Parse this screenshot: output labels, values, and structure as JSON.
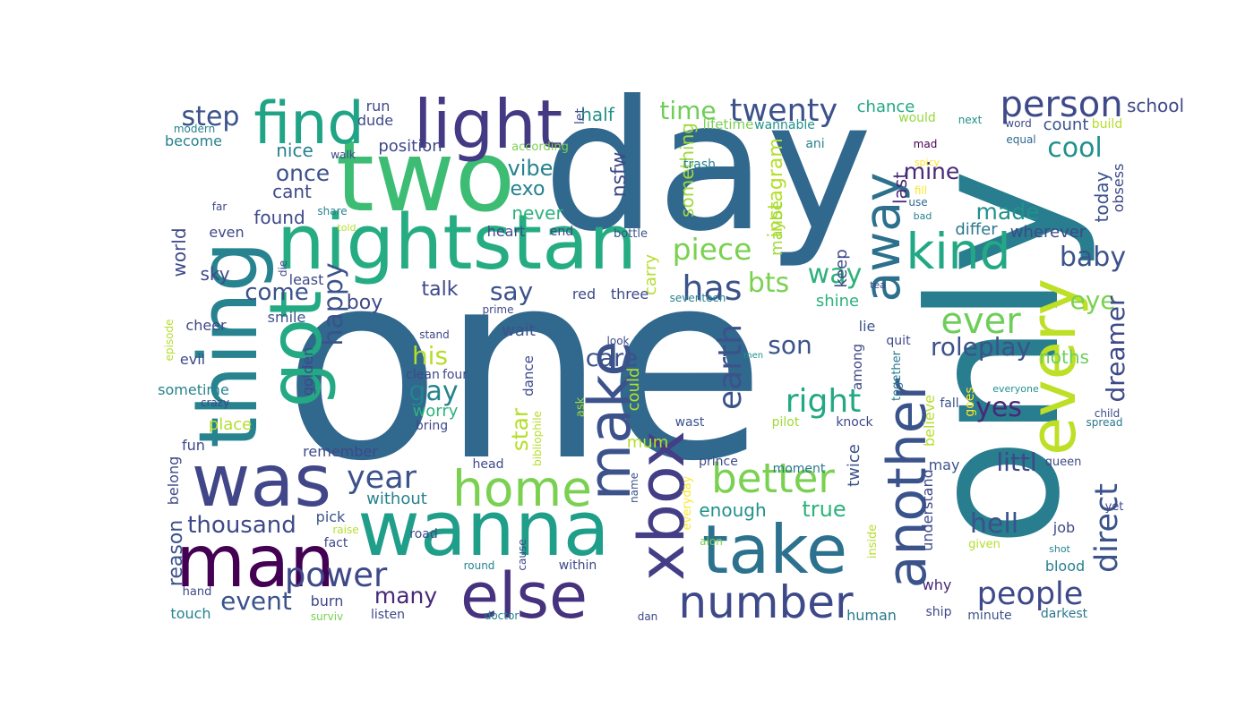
{
  "words": [
    {
      "t": "one",
      "c": "#31688e"
    },
    {
      "t": "day",
      "c": "#31688e"
    },
    {
      "t": "only",
      "c": "#287d8e"
    },
    {
      "t": "two",
      "c": "#3dbc74"
    },
    {
      "t": "nightstan",
      "c": "#25ac82"
    },
    {
      "t": "thing",
      "c": "#26838f"
    },
    {
      "t": "got",
      "c": "#23a983"
    },
    {
      "t": "find",
      "c": "#20a486"
    },
    {
      "t": "light",
      "c": "#443a83"
    },
    {
      "t": "was",
      "c": "#404688"
    },
    {
      "t": "man",
      "c": "#440154"
    },
    {
      "t": "wanna",
      "c": "#1f9e89"
    },
    {
      "t": "else",
      "c": "#46327e"
    },
    {
      "t": "take",
      "c": "#2c728e"
    },
    {
      "t": "xbox",
      "c": "#433e85"
    },
    {
      "t": "make",
      "c": "#3b528b"
    },
    {
      "t": "home",
      "c": "#7ad151"
    },
    {
      "t": "number",
      "c": "#3e4989"
    },
    {
      "t": "another",
      "c": "#3a538b"
    },
    {
      "t": "every",
      "c": "#bddf26"
    },
    {
      "t": "away",
      "c": "#2d708e"
    },
    {
      "t": "kind",
      "c": "#22a884"
    },
    {
      "t": "person",
      "c": "#3e4989"
    },
    {
      "t": "twenty",
      "c": "#3b528b"
    },
    {
      "t": "time",
      "c": "#6ece58"
    },
    {
      "t": "step",
      "c": "#3b528b"
    },
    {
      "t": "cool",
      "c": "#21918c"
    },
    {
      "t": "school",
      "c": "#3e4989"
    },
    {
      "t": "chance",
      "c": "#22a884"
    },
    {
      "t": "count",
      "c": "#3b528b"
    },
    {
      "t": "build",
      "c": "#b5de2b"
    },
    {
      "t": "word",
      "c": "#3e4989"
    },
    {
      "t": "next",
      "c": "#21918c"
    },
    {
      "t": "would",
      "c": "#95d840"
    },
    {
      "t": "mad",
      "c": "#440154"
    },
    {
      "t": "spicy",
      "c": "#fde725"
    },
    {
      "t": "fill",
      "c": "#fde725"
    },
    {
      "t": "use",
      "c": "#31688e"
    },
    {
      "t": "bad",
      "c": "#26828e"
    },
    {
      "t": "equal",
      "c": "#31688e"
    },
    {
      "t": "today",
      "c": "#3b528b"
    },
    {
      "t": "obsess",
      "c": "#3e4989"
    },
    {
      "t": "last",
      "c": "#482878"
    },
    {
      "t": "mine",
      "c": "#482878"
    },
    {
      "t": "made",
      "c": "#21918c"
    },
    {
      "t": "differ",
      "c": "#2a788e"
    },
    {
      "t": "wherever",
      "c": "#3e4989"
    },
    {
      "t": "baby",
      "c": "#3b528b"
    },
    {
      "t": "eye",
      "c": "#7ad151"
    },
    {
      "t": "dreamer",
      "c": "#3e4989"
    },
    {
      "t": "direct",
      "c": "#3b528b"
    },
    {
      "t": "ever",
      "c": "#6ece58"
    },
    {
      "t": "roleplay",
      "c": "#3b528b"
    },
    {
      "t": "right",
      "c": "#22a884"
    },
    {
      "t": "yes",
      "c": "#482878"
    },
    {
      "t": "noths",
      "c": "#6ece58"
    },
    {
      "t": "littl",
      "c": "#3e4989"
    },
    {
      "t": "hell",
      "c": "#3b528b"
    },
    {
      "t": "people",
      "c": "#3e4989"
    },
    {
      "t": "earth",
      "c": "#3b528b"
    },
    {
      "t": "better",
      "c": "#7ad151"
    },
    {
      "t": "has",
      "c": "#3b528b"
    },
    {
      "t": "bts",
      "c": "#7ad151"
    },
    {
      "t": "way",
      "c": "#2db27d"
    },
    {
      "t": "piece",
      "c": "#7ad151"
    },
    {
      "t": "instagram",
      "c": "#b5de2b"
    },
    {
      "t": "maybe",
      "c": "#a0da39"
    },
    {
      "t": "keep",
      "c": "#3e4989"
    },
    {
      "t": "something",
      "c": "#a0da39"
    },
    {
      "t": "lifetime",
      "c": "#7ad151"
    },
    {
      "t": "wannable",
      "c": "#21918c"
    },
    {
      "t": "ani",
      "c": "#26828e"
    },
    {
      "t": "trash",
      "c": "#26828e"
    },
    {
      "t": "nsfw",
      "c": "#3e4989"
    },
    {
      "t": "half",
      "c": "#21918c"
    },
    {
      "t": "let",
      "c": "#3e4989"
    },
    {
      "t": "according",
      "c": "#7ad151"
    },
    {
      "t": "bottle",
      "c": "#3b528b"
    },
    {
      "t": "carry",
      "c": "#b5de2b"
    },
    {
      "t": "seventeen",
      "c": "#26828e"
    },
    {
      "t": "shine",
      "c": "#2db27d"
    },
    {
      "t": "son",
      "c": "#3b528b"
    },
    {
      "t": "among",
      "c": "#3e4989"
    },
    {
      "t": "lie",
      "c": "#3b528b"
    },
    {
      "t": "quit",
      "c": "#3e4989"
    },
    {
      "t": "believe",
      "c": "#b5de2b"
    },
    {
      "t": "together",
      "c": "#2a788e"
    },
    {
      "t": "everyone",
      "c": "#21918c"
    },
    {
      "t": "child",
      "c": "#3e4989"
    },
    {
      "t": "spread",
      "c": "#2a788e"
    },
    {
      "t": "fall",
      "c": "#3b528b"
    },
    {
      "t": "goes",
      "c": "#fde725"
    },
    {
      "t": "queen",
      "c": "#3e4989"
    },
    {
      "t": "tea",
      "c": "#3e4989"
    },
    {
      "t": "men",
      "c": "#21918c"
    },
    {
      "t": "pilot",
      "c": "#a0da39"
    },
    {
      "t": "knock",
      "c": "#3e4989"
    },
    {
      "t": "wast",
      "c": "#3b528b"
    },
    {
      "t": "prince",
      "c": "#3e4989"
    },
    {
      "t": "moment",
      "c": "#2a788e"
    },
    {
      "t": "twice",
      "c": "#3b528b"
    },
    {
      "t": "understand",
      "c": "#3e4989"
    },
    {
      "t": "may",
      "c": "#3b528b"
    },
    {
      "t": "enough",
      "c": "#21918c"
    },
    {
      "t": "true",
      "c": "#2db27d"
    },
    {
      "t": "everyday",
      "c": "#fde725"
    },
    {
      "t": "alon",
      "c": "#7ad151"
    },
    {
      "t": "inside",
      "c": "#b5de2b"
    },
    {
      "t": "job",
      "c": "#3e4989"
    },
    {
      "t": "yet",
      "c": "#3e4989"
    },
    {
      "t": "given",
      "c": "#b5de2b"
    },
    {
      "t": "shot",
      "c": "#26828e"
    },
    {
      "t": "blood",
      "c": "#26828e"
    },
    {
      "t": "why",
      "c": "#482878"
    },
    {
      "t": "human",
      "c": "#2a788e"
    },
    {
      "t": "ship",
      "c": "#3e4989"
    },
    {
      "t": "minute",
      "c": "#3b528b"
    },
    {
      "t": "darkest",
      "c": "#2a788e"
    },
    {
      "t": "dan",
      "c": "#3e4989"
    },
    {
      "t": "name",
      "c": "#3b528b"
    },
    {
      "t": "within",
      "c": "#3e4989"
    },
    {
      "t": "cause",
      "c": "#3e4989"
    },
    {
      "t": "doctor",
      "c": "#26828e"
    },
    {
      "t": "round",
      "c": "#26828e"
    },
    {
      "t": "raise",
      "c": "#b5de2b"
    },
    {
      "t": "fact",
      "c": "#3e4989"
    },
    {
      "t": "pick",
      "c": "#3b528b"
    },
    {
      "t": "thousand",
      "c": "#3e4989"
    },
    {
      "t": "year",
      "c": "#3b528b"
    },
    {
      "t": "without",
      "c": "#26828e"
    },
    {
      "t": "remember",
      "c": "#3e4989"
    },
    {
      "t": "event",
      "c": "#3b528b"
    },
    {
      "t": "burn",
      "c": "#3e4989"
    },
    {
      "t": "listen",
      "c": "#3e4989"
    },
    {
      "t": "surviv",
      "c": "#7ad151"
    },
    {
      "t": "touch",
      "c": "#26828e"
    },
    {
      "t": "hand",
      "c": "#3e4989"
    },
    {
      "t": "reason",
      "c": "#3b528b"
    },
    {
      "t": "belong",
      "c": "#3e4989"
    },
    {
      "t": "power",
      "c": "#3e4989"
    },
    {
      "t": "many",
      "c": "#482878"
    },
    {
      "t": "road",
      "c": "#3e4989"
    },
    {
      "t": "head",
      "c": "#3e4989"
    },
    {
      "t": "bibliophile",
      "c": "#b5de2b"
    },
    {
      "t": "ask",
      "c": "#a0da39"
    },
    {
      "t": "could",
      "c": "#b5de2b"
    },
    {
      "t": "mum",
      "c": "#b5de2b"
    },
    {
      "t": "star",
      "c": "#b5de2b"
    },
    {
      "t": "dance",
      "c": "#3e4989"
    },
    {
      "t": "care",
      "c": "#3b528b"
    },
    {
      "t": "look",
      "c": "#3e4989"
    },
    {
      "t": "wait",
      "c": "#3b528b"
    },
    {
      "t": "prime",
      "c": "#3e4989"
    },
    {
      "t": "clean",
      "c": "#3e4989"
    },
    {
      "t": "four",
      "c": "#3e4989"
    },
    {
      "t": "stand",
      "c": "#3e4989"
    },
    {
      "t": "bring",
      "c": "#3e4989"
    },
    {
      "t": "worry",
      "c": "#2db27d"
    },
    {
      "t": "gay",
      "c": "#26828e"
    },
    {
      "t": "his",
      "c": "#b5de2b"
    },
    {
      "t": "golden",
      "c": "#3e4989"
    },
    {
      "t": "sometime",
      "c": "#26828e"
    },
    {
      "t": "crazy",
      "c": "#3e4989"
    },
    {
      "t": "fun",
      "c": "#3e4989"
    },
    {
      "t": "place",
      "c": "#b5de2b"
    },
    {
      "t": "evil",
      "c": "#3e4989"
    },
    {
      "t": "cheer",
      "c": "#3e4989"
    },
    {
      "t": "smile",
      "c": "#3b528b"
    },
    {
      "t": "happy",
      "c": "#3b528b"
    },
    {
      "t": "least",
      "c": "#3e4989"
    },
    {
      "t": "die",
      "c": "#3e4989"
    },
    {
      "t": "sky",
      "c": "#3e4989"
    },
    {
      "t": "world",
      "c": "#3e4989"
    },
    {
      "t": "episode",
      "c": "#b5de2b"
    },
    {
      "t": "come",
      "c": "#3b528b"
    },
    {
      "t": "boy",
      "c": "#3e4989"
    },
    {
      "t": "talk",
      "c": "#3e4989"
    },
    {
      "t": "say",
      "c": "#3b528b"
    },
    {
      "t": "red",
      "c": "#3e4989"
    },
    {
      "t": "three",
      "c": "#3e4989"
    },
    {
      "t": "heart",
      "c": "#3e4989"
    },
    {
      "t": "end",
      "c": "#3e4989"
    },
    {
      "t": "never",
      "c": "#2db27d"
    },
    {
      "t": "exo",
      "c": "#26828e"
    },
    {
      "t": "vibe",
      "c": "#26828e"
    },
    {
      "t": "found",
      "c": "#3e4989"
    },
    {
      "t": "cant",
      "c": "#3e4989"
    },
    {
      "t": "once",
      "c": "#3b528b"
    },
    {
      "t": "nice",
      "c": "#26828e"
    },
    {
      "t": "walk",
      "c": "#3e4989"
    },
    {
      "t": "far",
      "c": "#3e4989"
    },
    {
      "t": "even",
      "c": "#3e4989"
    },
    {
      "t": "share",
      "c": "#26828e"
    },
    {
      "t": "told",
      "c": "#b5de2b"
    },
    {
      "t": "position",
      "c": "#3e4989"
    },
    {
      "t": "run",
      "c": "#3e4989"
    },
    {
      "t": "dude",
      "c": "#3e4989"
    },
    {
      "t": "become",
      "c": "#26828e"
    },
    {
      "t": "modern",
      "c": "#26828e"
    }
  ]
}
